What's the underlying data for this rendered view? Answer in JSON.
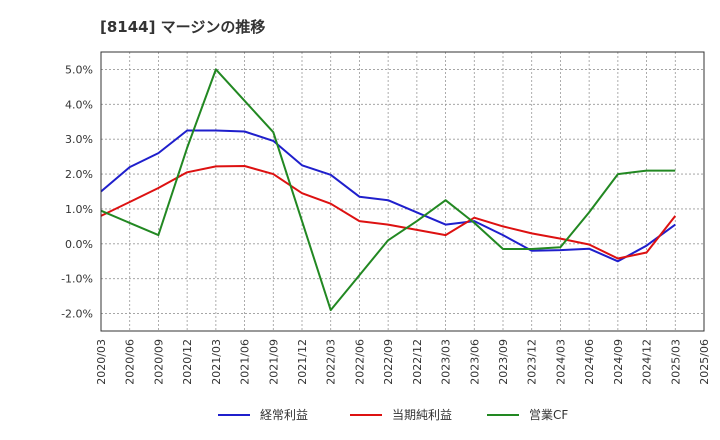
{
  "chart_data": {
    "type": "line",
    "title": "[8144]  マージンの推移",
    "xlabel": "",
    "ylabel": "",
    "categories": [
      "2020/03",
      "2020/06",
      "2020/09",
      "2020/12",
      "2021/03",
      "2021/06",
      "2021/09",
      "2021/12",
      "2022/03",
      "2022/06",
      "2022/09",
      "2022/12",
      "2023/03",
      "2023/06",
      "2023/09",
      "2023/12",
      "2024/03",
      "2024/06",
      "2024/09",
      "2024/12",
      "2025/03",
      "2025/06"
    ],
    "y_ticks": [
      "5.0%",
      "4.0%",
      "3.0%",
      "2.0%",
      "1.0%",
      "0.0%",
      "-1.0%",
      "-2.0%"
    ],
    "y_tick_values": [
      5,
      4,
      3,
      2,
      1,
      0,
      -1,
      -2
    ],
    "ylim": [
      -2.5,
      5.5
    ],
    "grid": true,
    "legend_position": "bottom",
    "series": [
      {
        "name": "経常利益",
        "color": "#1f1fcc",
        "values": [
          1.5,
          2.2,
          2.6,
          3.25,
          3.25,
          3.22,
          2.95,
          2.25,
          1.98,
          1.35,
          1.25,
          0.9,
          0.55,
          0.65,
          0.25,
          -0.2,
          -0.18,
          -0.14,
          -0.5,
          -0.05,
          0.55,
          null
        ]
      },
      {
        "name": "当期純利益",
        "color": "#dd1111",
        "values": [
          0.8,
          1.2,
          1.6,
          2.05,
          2.22,
          2.23,
          2.0,
          1.45,
          1.15,
          0.65,
          0.55,
          0.4,
          0.25,
          0.75,
          0.5,
          0.3,
          0.15,
          -0.02,
          -0.42,
          -0.25,
          0.8,
          null
        ]
      },
      {
        "name": "営業CF",
        "color": "#228822",
        "values": [
          0.95,
          0.6,
          0.25,
          2.75,
          5.0,
          4.1,
          3.2,
          0.65,
          -1.9,
          -0.9,
          0.1,
          0.65,
          1.25,
          0.6,
          -0.15,
          -0.15,
          -0.1,
          0.9,
          2.0,
          2.1,
          2.1,
          null
        ]
      }
    ]
  }
}
